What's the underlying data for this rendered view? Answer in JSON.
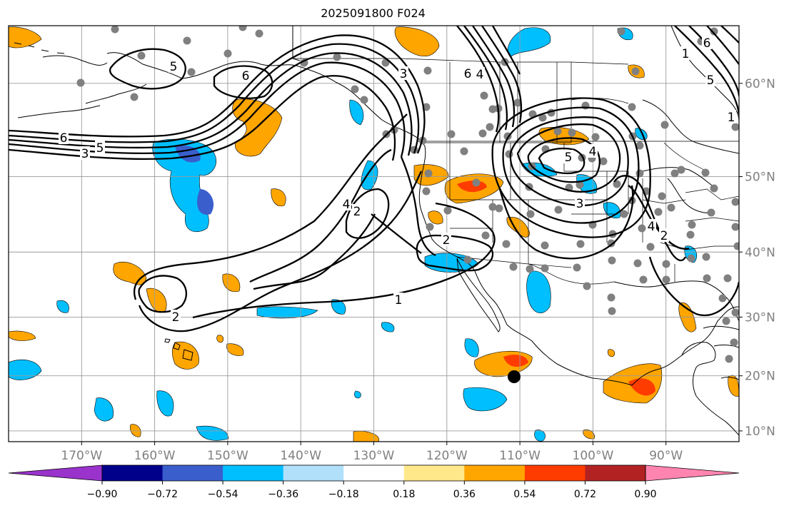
{
  "title": "2025091800 F024",
  "map": {
    "projection": "Mercator",
    "lon_range": [
      -180,
      -80
    ],
    "lat_range": [
      8,
      65
    ],
    "gridlines": true,
    "lon_labels": [
      "170°W",
      "160°W",
      "150°W",
      "140°W",
      "130°W",
      "120°W",
      "110°W",
      "100°W",
      "90°W"
    ],
    "lat_labels": [
      "60°N",
      "50°N",
      "40°N",
      "30°N",
      "20°N",
      "10°N"
    ],
    "coastline_color": "#000000",
    "station_marker_color": "#808080",
    "highlight_marker_color": "#000000"
  },
  "contour_labels": [
    "5",
    "6",
    "6",
    "3",
    "5",
    "3",
    "2",
    "4",
    "2",
    "1",
    "2",
    "6",
    "4",
    "5",
    "3",
    "4",
    "1",
    "2",
    "5",
    "1",
    "4",
    "6"
  ],
  "colorbar": {
    "tick_labels": [
      "−0.90",
      "−0.72",
      "−0.54",
      "−0.36",
      "−0.18",
      "0.18",
      "0.36",
      "0.54",
      "0.72",
      "0.90"
    ],
    "colors": [
      "#9933cc",
      "#00008b",
      "#3a5fcd",
      "#00bfff",
      "#b0e0fa",
      "#ffffff",
      "#ffe88a",
      "#ffa500",
      "#ff3c00",
      "#b22222",
      "#ff85b0"
    ],
    "extend": "both"
  }
}
